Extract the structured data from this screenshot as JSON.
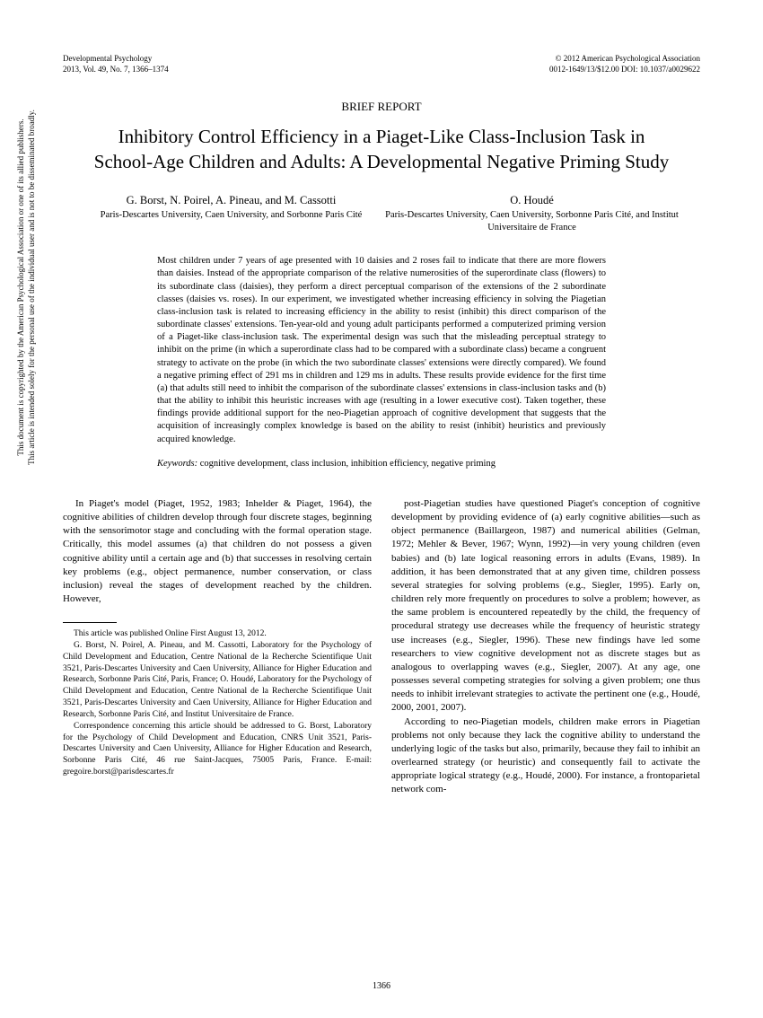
{
  "header": {
    "journal": "Developmental Psychology",
    "volume": "2013, Vol. 49, No. 7, 1366–1374",
    "copyright": "© 2012 American Psychological Association",
    "doi": "0012-1649/13/$12.00   DOI: 10.1037/a0029622"
  },
  "section_label": "BRIEF REPORT",
  "title": "Inhibitory Control Efficiency in a Piaget-Like Class-Inclusion Task in School-Age Children and Adults: A Developmental Negative Priming Study",
  "authors": {
    "left": {
      "names": "G. Borst, N. Poirel, A. Pineau, and M. Cassotti",
      "affil": "Paris-Descartes University, Caen University, and Sorbonne Paris Cité"
    },
    "right": {
      "names": "O. Houdé",
      "affil": "Paris-Descartes University, Caen University, Sorbonne Paris Cité, and Institut Universitaire de France"
    }
  },
  "abstract": "Most children under 7 years of age presented with 10 daisies and 2 roses fail to indicate that there are more flowers than daisies. Instead of the appropriate comparison of the relative numerosities of the superordinate class (flowers) to its subordinate class (daisies), they perform a direct perceptual comparison of the extensions of the 2 subordinate classes (daisies vs. roses). In our experiment, we investigated whether increasing efficiency in solving the Piagetian class-inclusion task is related to increasing efficiency in the ability to resist (inhibit) this direct comparison of the subordinate classes' extensions. Ten-year-old and young adult participants performed a computerized priming version of a Piaget-like class-inclusion task. The experimental design was such that the misleading perceptual strategy to inhibit on the prime (in which a superordinate class had to be compared with a subordinate class) became a congruent strategy to activate on the probe (in which the two subordinate classes' extensions were directly compared). We found a negative priming effect of 291 ms in children and 129 ms in adults. These results provide evidence for the first time (a) that adults still need to inhibit the comparison of the subordinate classes' extensions in class-inclusion tasks and (b) that the ability to inhibit this heuristic increases with age (resulting in a lower executive cost). Taken together, these findings provide additional support for the neo-Piagetian approach of cognitive development that suggests that the acquisition of increasingly complex knowledge is based on the ability to resist (inhibit) heuristics and previously acquired knowledge.",
  "keywords_label": "Keywords:",
  "keywords": " cognitive development, class inclusion, inhibition efficiency, negative priming",
  "body": {
    "left_p1": "In Piaget's model (Piaget, 1952, 1983; Inhelder & Piaget, 1964), the cognitive abilities of children develop through four discrete stages, beginning with the sensorimotor stage and concluding with the formal operation stage. Critically, this model assumes (a) that children do not possess a given cognitive ability until a certain age and (b) that successes in resolving certain key problems (e.g., object permanence, number conservation, or class inclusion) reveal the stages of development reached by the children. However,",
    "right_p1": "post-Piagetian studies have questioned Piaget's conception of cognitive development by providing evidence of (a) early cognitive abilities—such as object permanence (Baillargeon, 1987) and numerical abilities (Gelman, 1972; Mehler & Bever, 1967; Wynn, 1992)—in very young children (even babies) and (b) late logical reasoning errors in adults (Evans, 1989). In addition, it has been demonstrated that at any given time, children possess several strategies for solving problems (e.g., Siegler, 1995). Early on, children rely more frequently on procedures to solve a problem; however, as the same problem is encountered repeatedly by the child, the frequency of procedural strategy use decreases while the frequency of heuristic strategy use increases (e.g., Siegler, 1996). These new findings have led some researchers to view cognitive development not as discrete stages but as analogous to overlapping waves (e.g., Siegler, 2007). At any age, one possesses several competing strategies for solving a given problem; one thus needs to inhibit irrelevant strategies to activate the pertinent one (e.g., Houdé, 2000, 2001, 2007).",
    "right_p2": "According to neo-Piagetian models, children make errors in Piagetian problems not only because they lack the cognitive ability to understand the underlying logic of the tasks but also, primarily, because they fail to inhibit an overlearned strategy (or heuristic) and consequently fail to activate the appropriate logical strategy (e.g., Houdé, 2000). For instance, a frontoparietal network com-"
  },
  "footnote": {
    "p1": "This article was published Online First August 13, 2012.",
    "p2": "G. Borst, N. Poirel, A. Pineau, and M. Cassotti, Laboratory for the Psychology of Child Development and Education, Centre National de la Recherche Scientifique Unit 3521, Paris-Descartes University and Caen University, Alliance for Higher Education and Research, Sorbonne Paris Cité, Paris, France; O. Houdé, Laboratory for the Psychology of Child Development and Education, Centre National de la Recherche Scientifique Unit 3521, Paris-Descartes University and Caen University, Alliance for Higher Education and Research, Sorbonne Paris Cité, and Institut Universitaire de France.",
    "p3": "Correspondence concerning this article should be addressed to G. Borst, Laboratory for the Psychology of Child Development and Education, CNRS Unit 3521, Paris-Descartes University and Caen University, Alliance for Higher Education and Research, Sorbonne Paris Cité, 46 rue Saint-Jacques, 75005 Paris, France. E-mail: gregoire.borst@parisdescartes.fr"
  },
  "page_number": "1366",
  "side_notice": {
    "line1": "This document is copyrighted by the American Psychological Association or one of its allied publishers.",
    "line2": "This article is intended solely for the personal use of the individual user and is not to be disseminated broadly."
  }
}
